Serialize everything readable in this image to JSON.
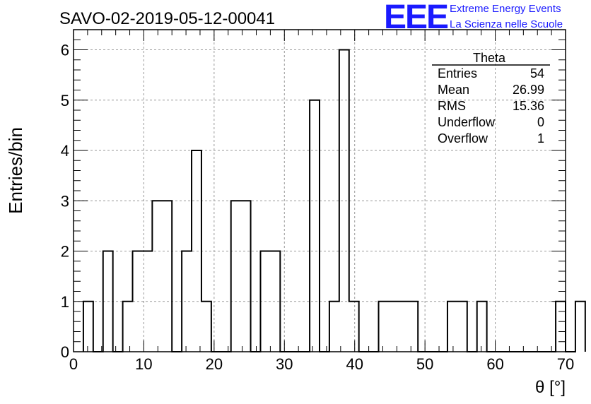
{
  "chart_data": {
    "type": "histogram",
    "title": "SAVO-02-2019-05-12-00041",
    "xlabel": "θ [°]",
    "ylabel": "Entries/bin",
    "xlim": [
      0,
      70
    ],
    "ylim": [
      0,
      6.4
    ],
    "x_ticks": [
      0,
      10,
      20,
      30,
      40,
      50,
      60,
      70
    ],
    "y_ticks": [
      0,
      1,
      2,
      3,
      4,
      5,
      6
    ],
    "grid": true,
    "bin_width": 1.4,
    "bin_start": 1.4,
    "values": [
      1,
      0,
      2,
      0,
      1,
      2,
      2,
      3,
      3,
      0,
      2,
      4,
      1,
      0,
      0,
      3,
      3,
      0,
      2,
      2,
      0,
      0,
      0,
      5,
      0,
      1,
      6,
      1,
      0,
      0,
      1,
      1,
      1,
      1,
      0,
      0,
      0,
      1,
      1,
      0,
      1,
      0,
      0,
      0,
      0,
      0,
      0,
      0,
      1,
      0,
      1
    ],
    "color": "#000000"
  },
  "stats": {
    "name": "Theta",
    "rows": [
      {
        "label": "Entries",
        "value": "54"
      },
      {
        "label": "Mean",
        "value": "26.99"
      },
      {
        "label": "RMS",
        "value": "15.36"
      },
      {
        "label": "Underflow",
        "value": "0"
      },
      {
        "label": "Overflow",
        "value": "1"
      }
    ]
  },
  "logo": {
    "mark": "EEE",
    "line1": "Extreme Energy Events",
    "line2": "La Scienza nelle Scuole",
    "color": "#1a1aff"
  }
}
